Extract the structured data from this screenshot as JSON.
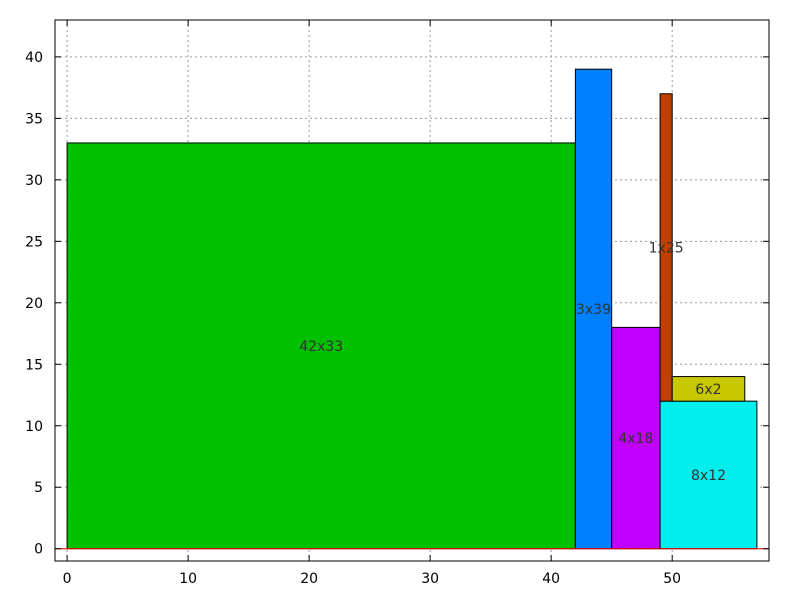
{
  "chart_data": {
    "type": "bar",
    "title": "",
    "xlabel": "",
    "ylabel": "",
    "xlim": [
      -1,
      58
    ],
    "ylim": [
      -1,
      43
    ],
    "grid": true,
    "x_ticks": [
      0,
      10,
      20,
      30,
      40,
      50
    ],
    "y_ticks": [
      0,
      5,
      10,
      15,
      20,
      25,
      30,
      35,
      40
    ],
    "baseline": {
      "y": 0,
      "color": "#ff0000"
    },
    "rectangles": [
      {
        "label": "42x33",
        "x": 0,
        "y": 0,
        "width": 42,
        "height": 33,
        "color": "#00c000"
      },
      {
        "label": "3x39",
        "x": 42,
        "y": 0,
        "width": 3,
        "height": 39,
        "color": "#0080ff"
      },
      {
        "label": "4x18",
        "x": 45,
        "y": 0,
        "width": 4,
        "height": 18,
        "color": "#c000ff"
      },
      {
        "label": "8x12",
        "x": 49,
        "y": 0,
        "width": 8,
        "height": 12,
        "color": "#00eeee"
      },
      {
        "label": "1x25",
        "x": 49,
        "y": 12,
        "width": 1,
        "height": 25,
        "color": "#c04000"
      },
      {
        "label": "6x2",
        "x": 50,
        "y": 12,
        "width": 6,
        "height": 2,
        "color": "#c8c800"
      }
    ]
  }
}
